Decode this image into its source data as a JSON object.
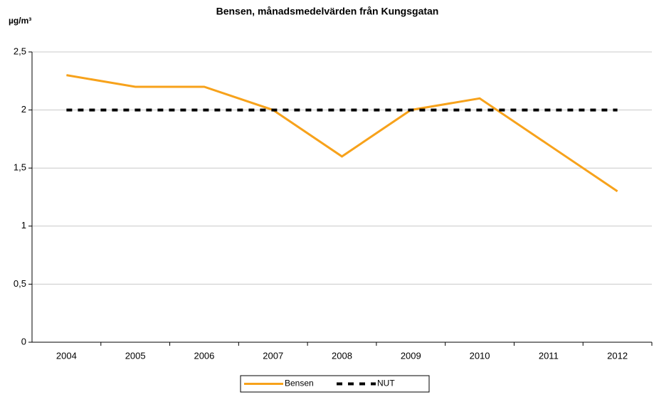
{
  "chart_data": {
    "type": "line",
    "title": "Bensen, månadsmedelvärden från Kungsgatan",
    "y_label": "µg/m³",
    "categories": [
      "2004",
      "2005",
      "2006",
      "2007",
      "2008",
      "2009",
      "2010",
      "2011",
      "2012"
    ],
    "series": [
      {
        "name": "Bensen",
        "color": "#f7a21b",
        "values": [
          2.3,
          2.2,
          2.2,
          2.0,
          1.6,
          2.0,
          2.1,
          1.7,
          1.3
        ]
      },
      {
        "name": "NUT",
        "color": "#000000",
        "dashed": true,
        "values": [
          2,
          2,
          2,
          2,
          2,
          2,
          2,
          2,
          2
        ]
      }
    ],
    "ylim": [
      0,
      2.5
    ],
    "yticks": [
      0,
      {
        "value": 0.5,
        "label": "0,5"
      },
      1,
      {
        "value": 1.5,
        "label": "1,5"
      },
      2,
      {
        "value": 2.5,
        "label": "2,5"
      }
    ],
    "grid": true,
    "legend": "bottom"
  }
}
